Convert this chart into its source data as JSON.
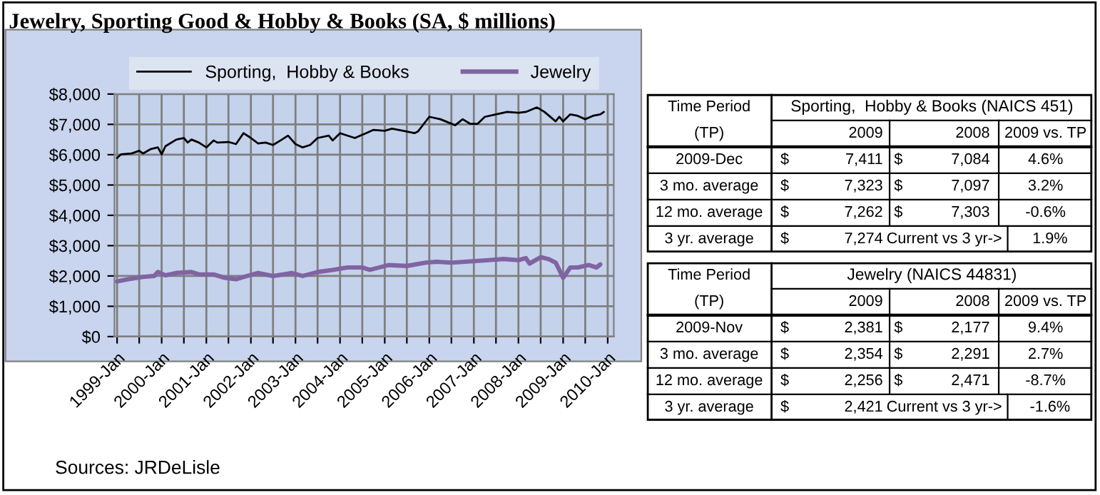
{
  "chart_data": [
    {
      "type": "line",
      "title": "Jewelry, Sporting Good & Hobby & Books (SA, $ millions)",
      "legend": "top",
      "grid": true,
      "series": [
        {
          "name": "Sporting,  Hobby & Books",
          "color": "#000000",
          "x": [
            "1999-01",
            "1999-02",
            "1999-05",
            "1999-07",
            "1999-08",
            "1999-10",
            "1999-12",
            "2000-01",
            "2000-02",
            "2000-05",
            "2000-07",
            "2000-08",
            "2000-09",
            "2000-11",
            "2001-01",
            "2001-03",
            "2001-04",
            "2001-07",
            "2001-09",
            "2001-11",
            "2002-01",
            "2002-03",
            "2002-05",
            "2002-07",
            "2002-09",
            "2002-11",
            "2003-01",
            "2003-03",
            "2003-05",
            "2003-07",
            "2003-10",
            "2003-11",
            "2004-01",
            "2004-05",
            "2004-08",
            "2004-10",
            "2005-01",
            "2005-03",
            "2005-06",
            "2005-09",
            "2005-10",
            "2006-01",
            "2006-04",
            "2006-08",
            "2006-10",
            "2006-12",
            "2007-02",
            "2007-04",
            "2007-07",
            "2007-10",
            "2008-01",
            "2008-03",
            "2008-06",
            "2008-08",
            "2008-11",
            "2008-12",
            "2009-01",
            "2009-03",
            "2009-05",
            "2009-07",
            "2009-09",
            "2009-11",
            "2009-12"
          ],
          "values": [
            5890,
            6010,
            6040,
            6130,
            6040,
            6180,
            6240,
            6010,
            6280,
            6500,
            6550,
            6400,
            6500,
            6400,
            6240,
            6470,
            6400,
            6420,
            6350,
            6710,
            6550,
            6370,
            6400,
            6320,
            6470,
            6630,
            6350,
            6240,
            6320,
            6550,
            6630,
            6470,
            6710,
            6550,
            6710,
            6820,
            6790,
            6860,
            6790,
            6710,
            6770,
            7250,
            7170,
            6970,
            7170,
            7020,
            7020,
            7250,
            7330,
            7410,
            7380,
            7410,
            7560,
            7410,
            7100,
            7250,
            7100,
            7330,
            7280,
            7170,
            7280,
            7330,
            7410
          ]
        },
        {
          "name": "Jewelry",
          "color": "#8064a2",
          "x": [
            "1999-01",
            "1999-04",
            "1999-08",
            "1999-11",
            "1999-12",
            "2000-02",
            "2000-05",
            "2000-09",
            "2000-11",
            "2001-03",
            "2001-06",
            "2001-09",
            "2001-12",
            "2002-03",
            "2002-07",
            "2002-12",
            "2003-03",
            "2003-07",
            "2003-11",
            "2004-03",
            "2004-07",
            "2004-09",
            "2005-02",
            "2005-07",
            "2005-12",
            "2006-03",
            "2006-07",
            "2006-12",
            "2007-05",
            "2007-09",
            "2008-01",
            "2008-03",
            "2008-04",
            "2008-07",
            "2008-09",
            "2008-11",
            "2009-01",
            "2009-03",
            "2009-05",
            "2009-08",
            "2009-10",
            "2009-11"
          ],
          "values": [
            1820,
            1890,
            1970,
            2000,
            2130,
            2020,
            2100,
            2130,
            2050,
            2050,
            1940,
            1890,
            2000,
            2100,
            2000,
            2100,
            2000,
            2130,
            2200,
            2280,
            2280,
            2200,
            2360,
            2330,
            2440,
            2470,
            2440,
            2480,
            2520,
            2560,
            2520,
            2590,
            2410,
            2620,
            2560,
            2440,
            1940,
            2280,
            2280,
            2360,
            2280,
            2380
          ]
        }
      ],
      "xlim": [
        "1998-12-10",
        "2010-02-20"
      ],
      "xticks": [
        {
          "value": "1999-01",
          "label": "1999-Jan"
        },
        {
          "value": "1999-07",
          "label": null
        },
        {
          "value": "2000-01",
          "label": "2000-Jan"
        },
        {
          "value": "2000-07",
          "label": null
        },
        {
          "value": "2001-01",
          "label": "2001-Jan"
        },
        {
          "value": "2001-07",
          "label": null
        },
        {
          "value": "2002-01",
          "label": "2002-Jan"
        },
        {
          "value": "2002-07",
          "label": null
        },
        {
          "value": "2003-01",
          "label": "2003-Jan"
        },
        {
          "value": "2003-07",
          "label": null
        },
        {
          "value": "2004-01",
          "label": "2004-Jan"
        },
        {
          "value": "2004-07",
          "label": null
        },
        {
          "value": "2005-01",
          "label": "2005-Jan"
        },
        {
          "value": "2005-07",
          "label": null
        },
        {
          "value": "2006-01",
          "label": "2006-Jan"
        },
        {
          "value": "2006-07",
          "label": null
        },
        {
          "value": "2007-01",
          "label": "2007-Jan"
        },
        {
          "value": "2007-07",
          "label": null
        },
        {
          "value": "2008-01",
          "label": "2008-Jan"
        },
        {
          "value": "2008-07",
          "label": null
        },
        {
          "value": "2009-01",
          "label": "2009-Jan"
        },
        {
          "value": "2009-07",
          "label": null
        },
        {
          "value": "2010-01",
          "label": "2010-Jan"
        }
      ],
      "ylim": [
        0,
        8000
      ],
      "yticks": [
        {
          "value": 0,
          "label": "$0"
        },
        {
          "value": 1000,
          "label": "$1,000"
        },
        {
          "value": 2000,
          "label": "$2,000"
        },
        {
          "value": 3000,
          "label": "$3,000"
        },
        {
          "value": 4000,
          "label": "$4,000"
        },
        {
          "value": 5000,
          "label": "$5,000"
        },
        {
          "value": 6000,
          "label": "$6,000"
        },
        {
          "value": 7000,
          "label": "$7,000"
        },
        {
          "value": 8000,
          "label": "$8,000"
        }
      ],
      "annotations": [
        "Sources: JRDeLisle"
      ]
    },
    {
      "type": "other",
      "title": "Sporting,  Hobby & Books (NAICS 451)",
      "annotations": [
        "Time Period",
        "(TP)",
        "2009",
        "2008",
        "2009 vs. TP",
        "2009-Dec",
        "$",
        "7,411",
        "$",
        "7,084",
        "4.6%",
        "3 mo. average",
        "$",
        "7,323",
        "$",
        "7,097",
        "3.2%",
        "12 mo. average",
        "$",
        "7,262",
        "$",
        "7,303",
        "-0.6%",
        "3 yr. average",
        "$",
        "7,274",
        "Current vs 3 yr->",
        "1.9%"
      ]
    },
    {
      "type": "other",
      "title": "Jewelry (NAICS 44831)",
      "annotations": [
        "Time Period",
        "(TP)",
        "2009",
        "2008",
        "2009 vs. TP",
        "2009-Nov",
        "$",
        "2,381",
        "$",
        "2,177",
        "9.4%",
        "3 mo. average",
        "$",
        "2,354",
        "$",
        "2,291",
        "2.7%",
        "12 mo. average",
        "$",
        "2,256",
        "$",
        "2,471",
        "-8.7%",
        "3 yr. average",
        "$",
        "2,421",
        "Current vs 3 yr->",
        "-1.6%"
      ]
    }
  ]
}
